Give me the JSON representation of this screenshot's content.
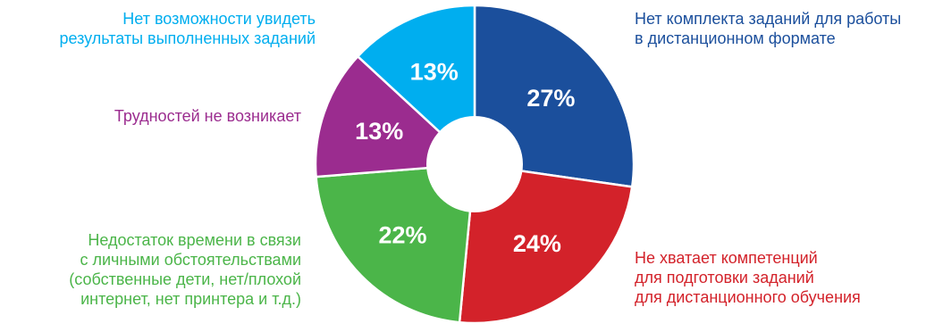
{
  "chart_data": {
    "type": "pie",
    "donut": true,
    "categories": [
      "Нет комплекта заданий для работы\nв дистанционном формате",
      "Не хватает компетенций\nдля подготовки заданий\nдля дистанционного обучения",
      "Недостаток времени в связи\nс личными обстоятельствами\n(собственные дети, нет/плохой\nинтернет, нет принтера и т.д.)",
      "Трудностей не возникает",
      "Нет возможности увидеть\nрезультаты выполненных заданий"
    ],
    "values": [
      27,
      24,
      22,
      13,
      13
    ],
    "value_labels": [
      "27%",
      "24%",
      "22%",
      "13%",
      "13%"
    ],
    "colors": [
      "#1b4f9c",
      "#d3222a",
      "#4bb549",
      "#9b2c8f",
      "#00aeef"
    ],
    "title": "",
    "legend": "none"
  }
}
